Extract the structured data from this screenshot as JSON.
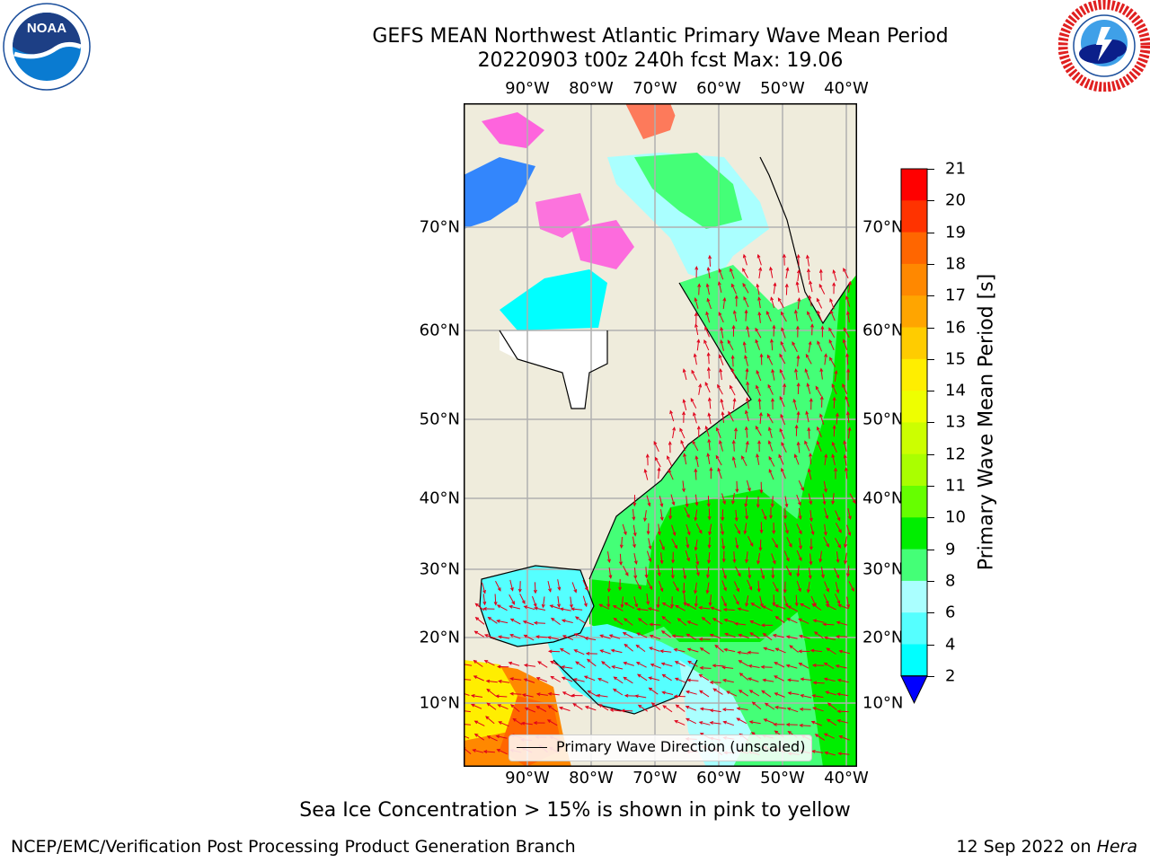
{
  "title": {
    "line1": "GEFS MEAN Northwest Atlantic Primary Wave Mean Period",
    "line2": "20220903 t00z 240h fcst   Max: 19.06"
  },
  "logos": {
    "left": {
      "icon": "noaa-logo",
      "text": "NOAA",
      "ring": "NATIONAL OCEANIC AND ATMOSPHERIC ADMINISTRATION • U.S. DEPARTMENT OF COMMERCE"
    },
    "right": {
      "icon": "nws-logo",
      "ring": "NATIONAL WEATHER SERVICE"
    }
  },
  "map": {
    "lon_labels": [
      "90°W",
      "80°W",
      "70°W",
      "60°W",
      "50°W",
      "40°W"
    ],
    "lat_labels": [
      "70°N",
      "60°N",
      "50°N",
      "40°N",
      "30°N",
      "20°N",
      "10°N"
    ],
    "colors": {
      "land": "#efecdc",
      "grid": "#b0b0b0",
      "arrow": "#e0001a",
      "coast": "#000000"
    }
  },
  "legend": {
    "label": "Primary Wave Direction (unscaled)"
  },
  "colorbar": {
    "title": "Primary Wave Mean Period [s]",
    "ticks": [
      "21",
      "20",
      "19",
      "18",
      "17",
      "16",
      "15",
      "14",
      "13",
      "12",
      "11",
      "10",
      "9",
      "8",
      "6",
      "4",
      "2"
    ],
    "colors": [
      "#ff0000",
      "#ff3300",
      "#ff6600",
      "#ff8800",
      "#ffa500",
      "#ffcc00",
      "#ffee00",
      "#eeff00",
      "#ccff00",
      "#aaff00",
      "#66ff00",
      "#00ee00",
      "#44ff77",
      "#aaffff",
      "#55ffff",
      "#00ffff",
      "#0088ff",
      "#0000ff"
    ]
  },
  "note": "Sea Ice Concentration > 15% is shown in pink to yellow",
  "footer": {
    "left": "NCEP/EMC/Verification Post Processing Product Generation Branch",
    "date": "12 Sep 2022 on ",
    "host": "Hera"
  }
}
